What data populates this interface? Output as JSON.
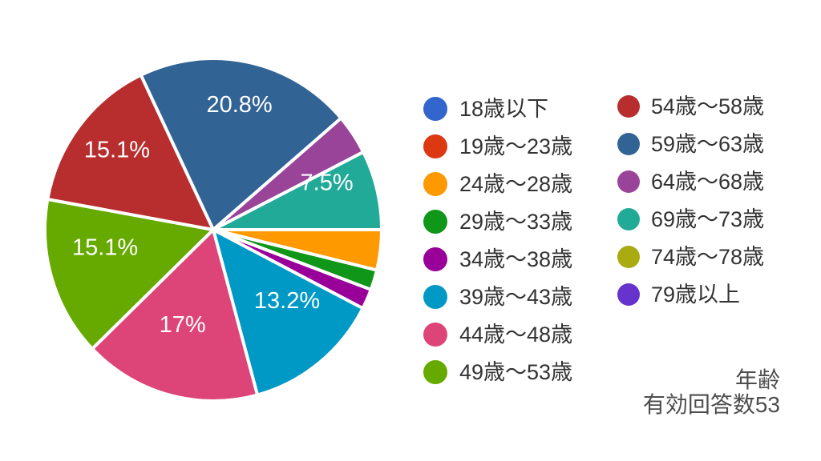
{
  "chart_data": {
    "type": "pie",
    "title": "年齢",
    "note": "有効回答数53",
    "legend_position": "right",
    "start_angle_deg": 0,
    "direction": "clockwise",
    "separator_color": "#ffffff",
    "label_text_color": "#ffffff",
    "legend_text_color": "#333333",
    "footer_text_color": "#4d4d4d",
    "categories": [
      {
        "label": "18歳以下",
        "color": "#3366cc",
        "percent": 0,
        "slice_label": ""
      },
      {
        "label": "19歳〜23歳",
        "color": "#dc3912",
        "percent": 0,
        "slice_label": ""
      },
      {
        "label": "24歳〜28歳",
        "color": "#ff9900",
        "percent": 3.8,
        "slice_label": ""
      },
      {
        "label": "29歳〜33歳",
        "color": "#109618",
        "percent": 1.9,
        "slice_label": ""
      },
      {
        "label": "34歳〜38歳",
        "color": "#990099",
        "percent": 1.9,
        "slice_label": ""
      },
      {
        "label": "39歳〜43歳",
        "color": "#0099c6",
        "percent": 13.2,
        "slice_label": "13.2%"
      },
      {
        "label": "44歳〜48歳",
        "color": "#dd4477",
        "percent": 17,
        "slice_label": "17%"
      },
      {
        "label": "49歳〜53歳",
        "color": "#66aa00",
        "percent": 15.1,
        "slice_label": "15.1%"
      },
      {
        "label": "54歳〜58歳",
        "color": "#b82e2e",
        "percent": 15.1,
        "slice_label": "15.1%"
      },
      {
        "label": "59歳〜63歳",
        "color": "#316395",
        "percent": 20.8,
        "slice_label": "20.8%"
      },
      {
        "label": "64歳〜68歳",
        "color": "#994499",
        "percent": 3.8,
        "slice_label": ""
      },
      {
        "label": "69歳〜73歳",
        "color": "#22aa99",
        "percent": 7.5,
        "slice_label": "7.5%"
      },
      {
        "label": "74歳〜78歳",
        "color": "#aaaa11",
        "percent": 0,
        "slice_label": ""
      },
      {
        "label": "79歳以上",
        "color": "#6633cc",
        "percent": 0,
        "slice_label": ""
      }
    ],
    "legend_columns": [
      [
        0,
        1,
        2,
        3,
        4,
        5,
        6,
        7
      ],
      [
        8,
        9,
        10,
        11,
        12,
        13
      ]
    ]
  }
}
